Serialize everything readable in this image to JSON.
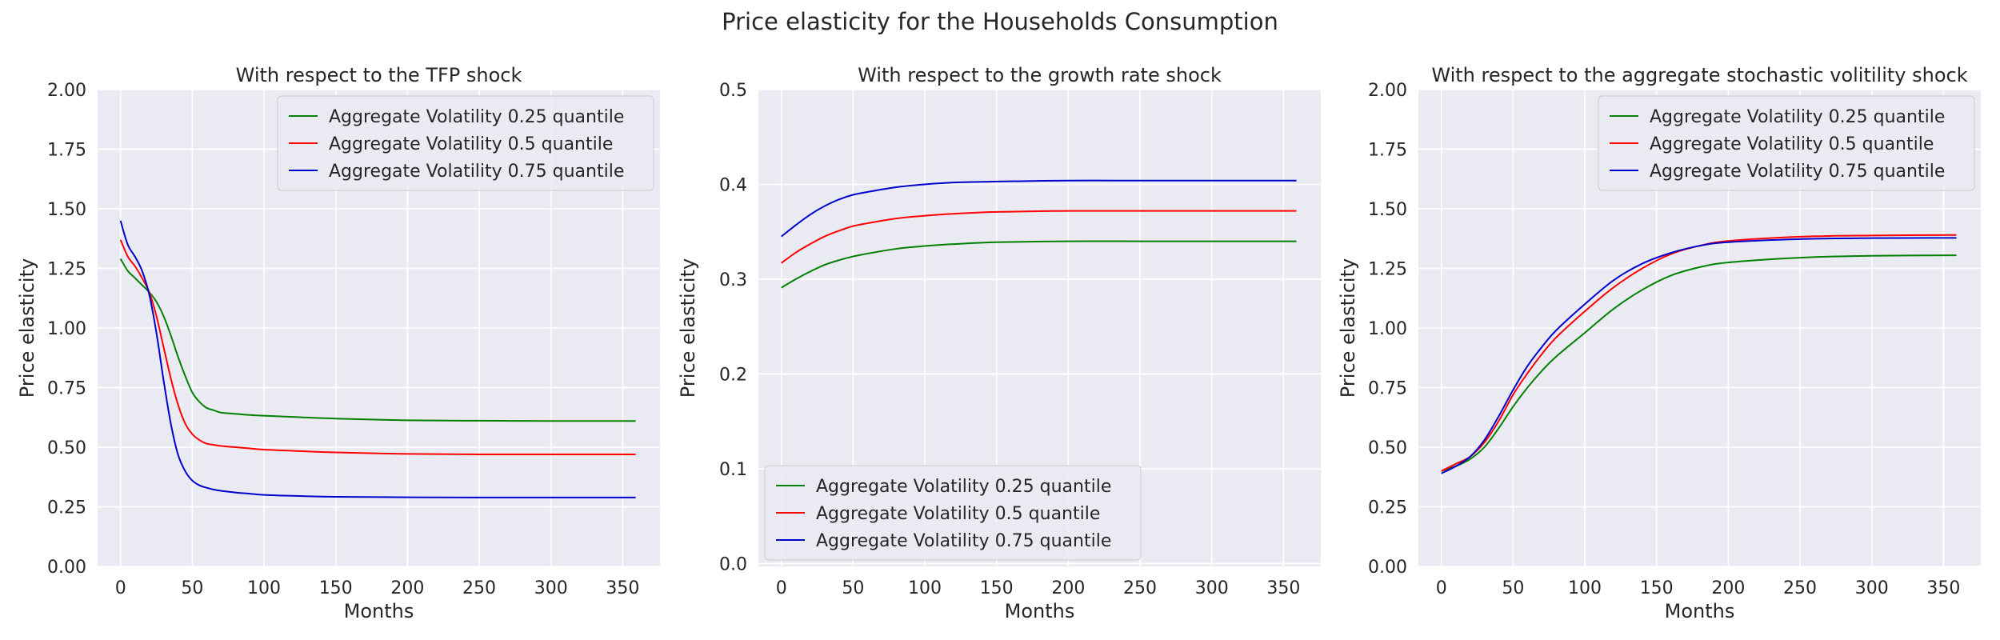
{
  "figure": {
    "suptitle": "Price elasticity for the Households Consumption"
  },
  "style": {
    "axes_bg": "#eaeaf2",
    "grid": "#ffffff",
    "text": "#262626",
    "series_colors": [
      "#008000",
      "#ff0000",
      "#0000cc"
    ]
  },
  "chart_data": [
    {
      "type": "line",
      "title": "With respect to the TFP shock",
      "xlabel": "Months",
      "ylabel": "Price elasticity",
      "xlim": [
        -16,
        376
      ],
      "ylim": [
        0,
        2.0
      ],
      "xticks": [
        0,
        50,
        100,
        150,
        200,
        250,
        300,
        350
      ],
      "yticks": [
        0.0,
        0.25,
        0.5,
        0.75,
        1.0,
        1.25,
        1.5,
        1.75,
        2.0
      ],
      "ytick_labels": [
        "0.00",
        "0.25",
        "0.50",
        "0.75",
        "1.00",
        "1.25",
        "1.50",
        "1.75",
        "2.00"
      ],
      "grid": true,
      "legend_position": "upper right",
      "x": [
        0,
        5,
        10,
        15,
        20,
        25,
        30,
        35,
        40,
        45,
        50,
        55,
        60,
        65,
        70,
        80,
        90,
        100,
        120,
        150,
        200,
        250,
        300,
        359
      ],
      "series": [
        {
          "name": "Aggregate Volatility 0.25 quantile",
          "values": [
            1.29,
            1.24,
            1.21,
            1.18,
            1.15,
            1.11,
            1.05,
            0.97,
            0.88,
            0.8,
            0.73,
            0.69,
            0.665,
            0.655,
            0.645,
            0.64,
            0.635,
            0.632,
            0.627,
            0.62,
            0.613,
            0.611,
            0.61,
            0.61
          ]
        },
        {
          "name": "Aggregate Volatility 0.5 quantile",
          "values": [
            1.37,
            1.3,
            1.26,
            1.21,
            1.15,
            1.05,
            0.92,
            0.79,
            0.68,
            0.6,
            0.555,
            0.53,
            0.515,
            0.51,
            0.505,
            0.5,
            0.495,
            0.49,
            0.485,
            0.478,
            0.472,
            0.47,
            0.47,
            0.47
          ]
        },
        {
          "name": "Aggregate Volatility 0.75 quantile",
          "values": [
            1.45,
            1.35,
            1.3,
            1.24,
            1.14,
            0.98,
            0.78,
            0.6,
            0.47,
            0.4,
            0.36,
            0.34,
            0.33,
            0.322,
            0.317,
            0.31,
            0.305,
            0.3,
            0.296,
            0.292,
            0.29,
            0.289,
            0.289,
            0.289
          ]
        }
      ]
    },
    {
      "type": "line",
      "title": "With respect to the growth rate shock",
      "xlabel": "Months",
      "ylabel": "Price elasticity",
      "xlim": [
        -16,
        376
      ],
      "ylim": [
        -0.003,
        0.5
      ],
      "xticks": [
        0,
        50,
        100,
        150,
        200,
        250,
        300,
        350
      ],
      "yticks": [
        0.0,
        0.1,
        0.2,
        0.3,
        0.4,
        0.5
      ],
      "ytick_labels": [
        "0.0",
        "0.1",
        "0.2",
        "0.3",
        "0.4",
        "0.5"
      ],
      "grid": true,
      "legend_position": "lower left",
      "x": [
        0,
        10,
        20,
        30,
        40,
        50,
        60,
        80,
        100,
        120,
        150,
        200,
        250,
        300,
        359
      ],
      "series": [
        {
          "name": "Aggregate Volatility 0.25 quantile",
          "values": [
            0.291,
            0.3,
            0.308,
            0.315,
            0.32,
            0.324,
            0.327,
            0.332,
            0.335,
            0.337,
            0.339,
            0.34,
            0.34,
            0.34,
            0.34
          ]
        },
        {
          "name": "Aggregate Volatility 0.5 quantile",
          "values": [
            0.317,
            0.328,
            0.337,
            0.345,
            0.351,
            0.356,
            0.359,
            0.364,
            0.367,
            0.369,
            0.371,
            0.372,
            0.372,
            0.372,
            0.372
          ]
        },
        {
          "name": "Aggregate Volatility 0.75 quantile",
          "values": [
            0.345,
            0.357,
            0.368,
            0.377,
            0.384,
            0.389,
            0.392,
            0.397,
            0.4,
            0.402,
            0.403,
            0.404,
            0.404,
            0.404,
            0.404
          ]
        }
      ]
    },
    {
      "type": "line",
      "title": "With respect to the aggregate stochastic volitility shock",
      "xlabel": "Months",
      "ylabel": "Price elasticity",
      "xlim": [
        -16,
        376
      ],
      "ylim": [
        0,
        2.0
      ],
      "xticks": [
        0,
        50,
        100,
        150,
        200,
        250,
        300,
        350
      ],
      "yticks": [
        0.0,
        0.25,
        0.5,
        0.75,
        1.0,
        1.25,
        1.5,
        1.75,
        2.0
      ],
      "ytick_labels": [
        "0.00",
        "0.25",
        "0.50",
        "0.75",
        "1.00",
        "1.25",
        "1.50",
        "1.75",
        "2.00"
      ],
      "grid": true,
      "legend_position": "upper right",
      "x": [
        0,
        10,
        20,
        30,
        40,
        50,
        60,
        70,
        80,
        100,
        120,
        140,
        160,
        180,
        200,
        250,
        300,
        359
      ],
      "series": [
        {
          "name": "Aggregate Volatility 0.25 quantile",
          "values": [
            0.4,
            0.42,
            0.45,
            0.5,
            0.58,
            0.67,
            0.75,
            0.82,
            0.88,
            0.98,
            1.08,
            1.16,
            1.22,
            1.255,
            1.275,
            1.295,
            1.303,
            1.305
          ]
        },
        {
          "name": "Aggregate Volatility 0.5 quantile",
          "values": [
            0.4,
            0.43,
            0.46,
            0.52,
            0.61,
            0.72,
            0.81,
            0.89,
            0.96,
            1.07,
            1.17,
            1.25,
            1.31,
            1.345,
            1.365,
            1.383,
            1.388,
            1.39
          ]
        },
        {
          "name": "Aggregate Volatility 0.75 quantile",
          "values": [
            0.39,
            0.42,
            0.46,
            0.53,
            0.63,
            0.74,
            0.84,
            0.92,
            0.99,
            1.1,
            1.2,
            1.27,
            1.315,
            1.345,
            1.36,
            1.373,
            1.377,
            1.378
          ]
        }
      ]
    }
  ]
}
